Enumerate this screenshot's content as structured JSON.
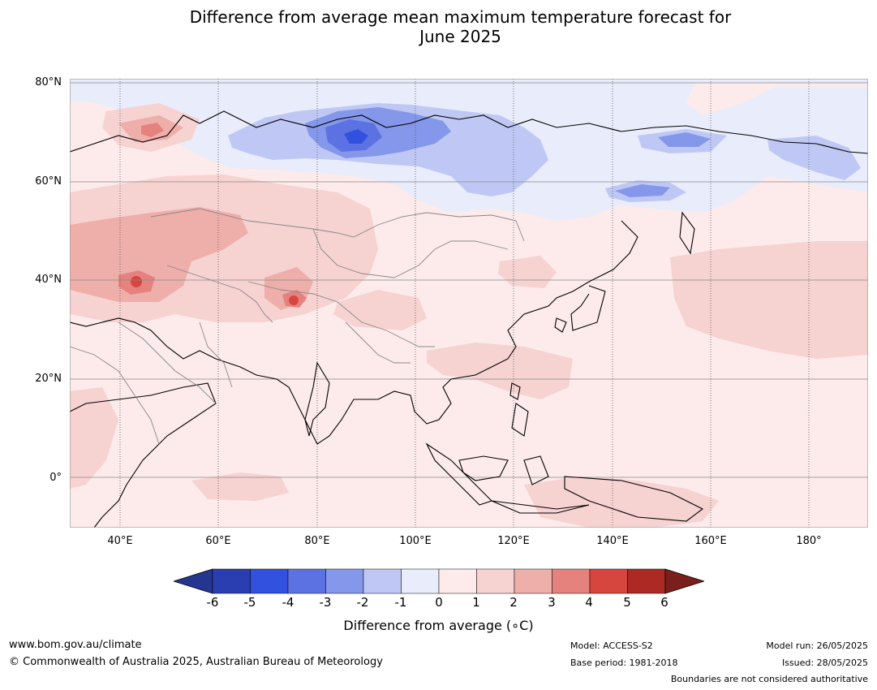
{
  "title_line1": "Difference from average mean maximum temperature forecast for",
  "title_line2": "June 2025",
  "lat_labels": [
    "80°N",
    "60°N",
    "40°N",
    "20°N",
    "0°"
  ],
  "lon_labels": [
    "40°E",
    "60°E",
    "80°E",
    "100°E",
    "120°E",
    "140°E",
    "160°E",
    "180°"
  ],
  "colorbar": {
    "title": "Difference from average (∘C)",
    "ticks": [
      "-6",
      "-5",
      "-4",
      "-3",
      "-2",
      "-1",
      "0",
      "1",
      "2",
      "3",
      "4",
      "5",
      "6"
    ],
    "colors": [
      "#24368f",
      "#2a3eb1",
      "#3251de",
      "#5c72e3",
      "#8497ea",
      "#bfc8f4",
      "#e8ecfb",
      "#fcebea",
      "#f6d2d1",
      "#eeaeaa",
      "#e5827d",
      "#d6463f",
      "#ad2a24",
      "#7b1f1c"
    ]
  },
  "footer": {
    "website": "www.bom.gov.au/climate",
    "copyright": "© Commonwealth of Australia 2025, Australian Bureau of Meteorology",
    "model": "Model: ACCESS-S2",
    "base_period": "Base period: 1981-2018",
    "model_run": "Model run: 26/05/2025",
    "issued": "Issued: 28/05/2025",
    "disclaimer": "Boundaries are not considered authoritative"
  }
}
